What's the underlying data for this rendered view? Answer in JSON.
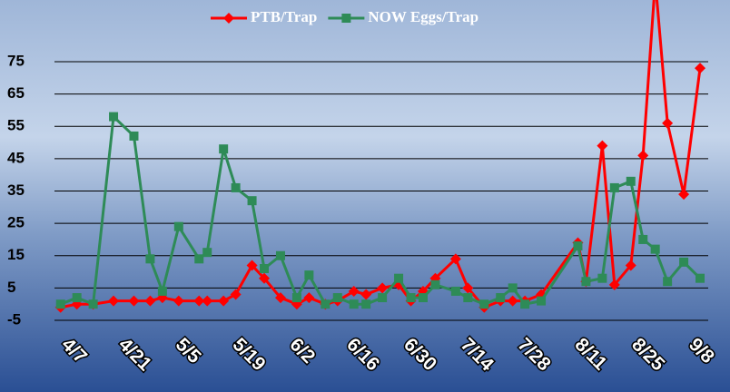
{
  "chart_data": {
    "type": "line",
    "x": [
      -4,
      0,
      4,
      9,
      14,
      18,
      21,
      25,
      30,
      32,
      36,
      39,
      43,
      46,
      50,
      54,
      57,
      61,
      64,
      68,
      71,
      75,
      79,
      82,
      85,
      88,
      93,
      96,
      100,
      104,
      107,
      110,
      114,
      123,
      125,
      129,
      132,
      136,
      139,
      142,
      145,
      149,
      153
    ],
    "series": [
      {
        "name": "PTB/Trap",
        "color": "#ff0000",
        "marker": "diamond",
        "values": [
          -1,
          0,
          0,
          1,
          1,
          1,
          2,
          1,
          1,
          1,
          1,
          3,
          12,
          8,
          2,
          0,
          2,
          0,
          1,
          4,
          3,
          5,
          6,
          1,
          4,
          8,
          14,
          5,
          -1,
          1,
          1,
          1,
          3,
          19,
          7,
          49,
          6,
          12,
          46,
          100,
          56,
          34,
          73
        ]
      },
      {
        "name": "NOW Eggs/Trap",
        "color": "#2e8b57",
        "marker": "square",
        "values": [
          0,
          2,
          0,
          58,
          52,
          14,
          4,
          24,
          14,
          16,
          48,
          36,
          32,
          11,
          15,
          2,
          9,
          0,
          2,
          0,
          0,
          2,
          8,
          2,
          2,
          6,
          4,
          2,
          0,
          2,
          5,
          0,
          1,
          18,
          7,
          8,
          36,
          38,
          20,
          17,
          7,
          13,
          8
        ]
      }
    ],
    "xlim": [
      -5.5,
      155
    ],
    "xticks": [
      {
        "value": 0,
        "label": "4/7"
      },
      {
        "value": 14,
        "label": "4/21"
      },
      {
        "value": 28,
        "label": "5/5"
      },
      {
        "value": 42,
        "label": "5/19"
      },
      {
        "value": 56,
        "label": "6/2"
      },
      {
        "value": 70,
        "label": "6/16"
      },
      {
        "value": 84,
        "label": "6/30"
      },
      {
        "value": 98,
        "label": "7/14"
      },
      {
        "value": 112,
        "label": "7/28"
      },
      {
        "value": 126,
        "label": "8/11"
      },
      {
        "value": 140,
        "label": "8/25"
      },
      {
        "value": 154,
        "label": "9/8"
      }
    ],
    "ylim": [
      -5,
      75
    ],
    "yticks": [
      -5,
      5,
      15,
      25,
      35,
      45,
      55,
      65,
      75
    ],
    "grid": true,
    "legend": "top"
  }
}
